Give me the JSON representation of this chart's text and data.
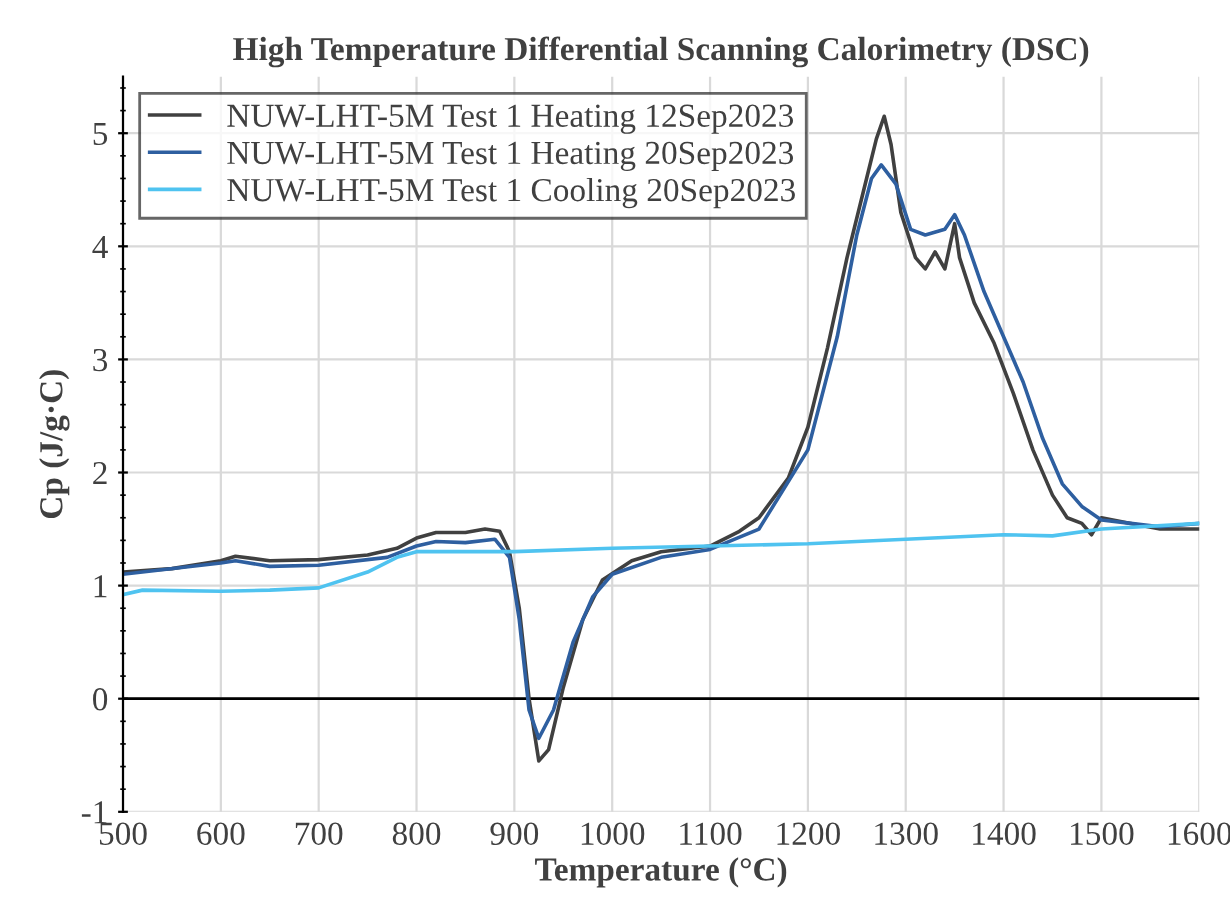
{
  "chart_data": {
    "type": "line",
    "title": "High Temperature Differential Scanning Calorimetry (DSC)",
    "xlabel": "Temperature (°C)",
    "ylabel": "Cp (J/g·C)",
    "xlim": [
      500,
      1600
    ],
    "xticks": [
      500,
      600,
      700,
      800,
      900,
      1000,
      1100,
      1200,
      1300,
      1400,
      1500,
      1600
    ],
    "ylim": [
      -1,
      5.5
    ],
    "yticks": [
      -1,
      0,
      1,
      2,
      3,
      4,
      5
    ],
    "grid": true,
    "legend": "top left",
    "line_style": "solid",
    "ref_lines": [
      {
        "axis": "y",
        "value": 0,
        "color": "#000000"
      }
    ],
    "series": [
      {
        "name": "NUW-LHT-5M Test 1 Heating 12Sep2023",
        "color": "#404040",
        "x": [
          500,
          550,
          600,
          615,
          650,
          700,
          750,
          780,
          800,
          820,
          850,
          870,
          885,
          895,
          905,
          915,
          925,
          935,
          950,
          970,
          990,
          1020,
          1050,
          1100,
          1130,
          1150,
          1180,
          1200,
          1220,
          1240,
          1260,
          1270,
          1278,
          1285,
          1295,
          1310,
          1320,
          1330,
          1340,
          1350,
          1355,
          1370,
          1390,
          1410,
          1430,
          1450,
          1465,
          1480,
          1490,
          1500,
          1530,
          1560,
          1600
        ],
        "values": [
          1.12,
          1.15,
          1.22,
          1.26,
          1.22,
          1.23,
          1.27,
          1.33,
          1.42,
          1.47,
          1.47,
          1.5,
          1.48,
          1.3,
          0.8,
          0.0,
          -0.55,
          -0.45,
          0.1,
          0.7,
          1.05,
          1.22,
          1.3,
          1.35,
          1.48,
          1.6,
          1.95,
          2.4,
          3.1,
          3.9,
          4.6,
          4.95,
          5.15,
          4.9,
          4.3,
          3.9,
          3.8,
          3.95,
          3.8,
          4.2,
          3.9,
          3.5,
          3.15,
          2.7,
          2.2,
          1.8,
          1.6,
          1.55,
          1.45,
          1.6,
          1.55,
          1.5,
          1.5
        ]
      },
      {
        "name": "NUW-LHT-5M Test 1 Heating 20Sep2023",
        "color": "#2e5fa0",
        "x": [
          500,
          600,
          615,
          650,
          700,
          770,
          800,
          820,
          850,
          880,
          895,
          905,
          915,
          925,
          940,
          960,
          980,
          1000,
          1050,
          1100,
          1150,
          1200,
          1230,
          1250,
          1265,
          1275,
          1290,
          1305,
          1320,
          1340,
          1350,
          1360,
          1380,
          1400,
          1420,
          1440,
          1460,
          1480,
          1500,
          1530,
          1560,
          1600
        ],
        "values": [
          1.1,
          1.2,
          1.22,
          1.17,
          1.18,
          1.25,
          1.35,
          1.39,
          1.38,
          1.41,
          1.25,
          0.7,
          -0.1,
          -0.35,
          -0.1,
          0.5,
          0.9,
          1.1,
          1.25,
          1.32,
          1.5,
          2.2,
          3.2,
          4.1,
          4.6,
          4.72,
          4.55,
          4.15,
          4.1,
          4.15,
          4.28,
          4.1,
          3.6,
          3.2,
          2.8,
          2.3,
          1.9,
          1.7,
          1.58,
          1.55,
          1.52,
          1.55
        ]
      },
      {
        "name": "NUW-LHT-5M Test 1 Cooling 20Sep2023",
        "color": "#4fc3f0",
        "x": [
          500,
          520,
          600,
          650,
          700,
          750,
          780,
          800,
          900,
          1000,
          1100,
          1200,
          1300,
          1400,
          1450,
          1500,
          1600
        ],
        "values": [
          0.92,
          0.96,
          0.95,
          0.96,
          0.98,
          1.12,
          1.25,
          1.3,
          1.3,
          1.33,
          1.35,
          1.37,
          1.41,
          1.45,
          1.44,
          1.5,
          1.55
        ]
      }
    ]
  }
}
